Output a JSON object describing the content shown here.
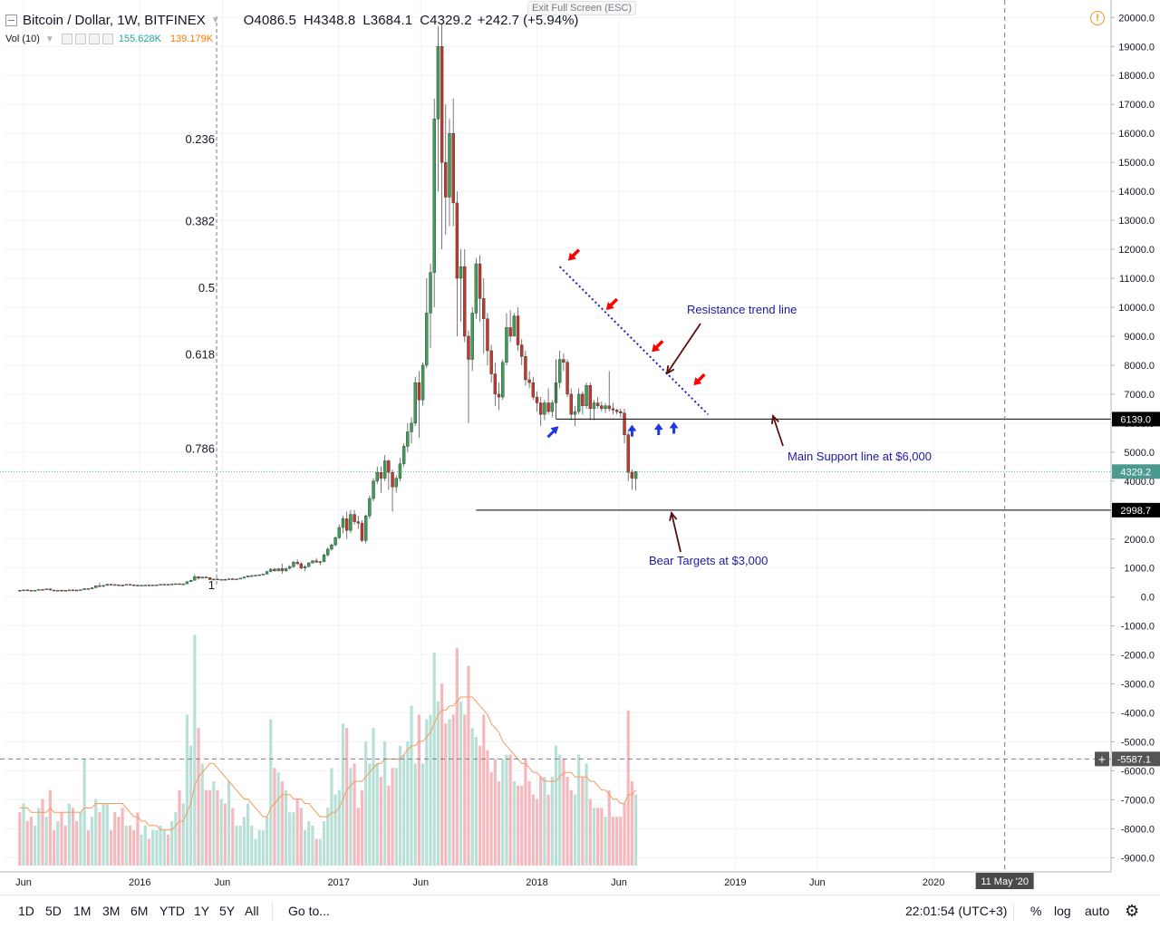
{
  "header": {
    "symbol": "Bitcoin / Dollar, 1W, BITFINEX",
    "open": "O4086.5",
    "high": "H4348.8",
    "low": "L3684.1",
    "close": "C4329.2",
    "change": "+242.7 (+5.94%)",
    "exit_fullscreen": "Exit Full Screen (ESC)",
    "alert_icon": "!"
  },
  "volume_indicator": {
    "label": "Vol (10)",
    "value": "155.628K",
    "ma_value": "139.179K",
    "value_color": "#26a69a",
    "ma_color": "#f57c00"
  },
  "price_axis": {
    "ticks": [
      "20000.0",
      "19000.0",
      "18000.0",
      "17000.0",
      "16000.0",
      "15000.0",
      "14000.0",
      "13000.0",
      "12000.0",
      "11000.0",
      "10000.0",
      "9000.0",
      "8000.0",
      "7000.0",
      "6000.0",
      "5000.0",
      "4000.0",
      "3000.0",
      "2000.0",
      "1000.0",
      "0.0",
      "-1000.0",
      "-2000.0",
      "-3000.0",
      "-4000.0",
      "-5000.0",
      "-6000.0",
      "-7000.0",
      "-8000.0",
      "-9000.0"
    ],
    "labels": [
      {
        "text": "6139.0",
        "value": 6139,
        "color": "#000000"
      },
      {
        "text": "4329.2",
        "value": 4329.2,
        "color": "#4a9a90"
      },
      {
        "text": "2998.7",
        "value": 2998.7,
        "color": "#000000"
      },
      {
        "text": "-5587.1",
        "value": -5587.1,
        "color": "#555555"
      }
    ]
  },
  "time_axis": {
    "ticks": [
      "Jun",
      "2016",
      "Jun",
      "2017",
      "Jun",
      "2018",
      "Jun",
      "2019",
      "Jun",
      "2020"
    ],
    "cursor_label": "11 May '20"
  },
  "chart_data": {
    "type": "candlestick",
    "title": "Bitcoin / Dollar, 1W, BITFINEX",
    "y_range": [
      -9500,
      20200
    ],
    "x_range": [
      "2015-05-25",
      "2020-10-20"
    ],
    "fib_levels": [
      {
        "label": "0.236",
        "value": 15780
      },
      {
        "label": "0.382",
        "value": 12950
      },
      {
        "label": "0.5",
        "value": 10650
      },
      {
        "label": "0.618",
        "value": 8360
      },
      {
        "label": "0.786",
        "value": 5100
      },
      {
        "label": "1",
        "value": 400
      }
    ],
    "trend_line": {
      "from": {
        "date": "2018-02-12",
        "value": 11400
      },
      "to": {
        "date": "2018-11-12",
        "value": 6300
      }
    },
    "support_line": {
      "from_date": "2018-02-05",
      "value": 6139
    },
    "bear_line": {
      "from_date": "2017-09-11",
      "value": 2998.7
    },
    "crosshair": {
      "date": "2020-05-11",
      "value": -5587.1
    },
    "annotations": [
      {
        "text": "Resistance trend line",
        "color": "#1a1aa6"
      },
      {
        "text": "Main Support line at $6,000",
        "color": "#1a1aa6"
      },
      {
        "text": "Bear Targets at $3,000",
        "color": "#1a1aa6"
      }
    ],
    "red_arrows": [
      {
        "date": "2018-02-19",
        "value": 11700
      },
      {
        "date": "2018-04-30",
        "value": 10000
      },
      {
        "date": "2018-07-23",
        "value": 8550
      },
      {
        "date": "2018-10-08",
        "value": 7400
      }
    ],
    "blue_arrows": [
      {
        "date": "2018-02-05",
        "value": 5800
      },
      {
        "date": "2018-06-25",
        "value": 5850
      },
      {
        "date": "2018-08-13",
        "value": 5900
      },
      {
        "date": "2018-09-10",
        "value": 5950
      }
    ],
    "candles": [
      [
        230,
        240,
        210,
        220
      ],
      [
        220,
        250,
        215,
        245
      ],
      [
        245,
        260,
        230,
        235
      ],
      [
        235,
        245,
        220,
        225
      ],
      [
        225,
        240,
        215,
        230
      ],
      [
        230,
        270,
        225,
        260
      ],
      [
        260,
        275,
        240,
        255
      ],
      [
        255,
        290,
        250,
        280
      ],
      [
        280,
        295,
        230,
        240
      ],
      [
        240,
        250,
        200,
        210
      ],
      [
        210,
        245,
        205,
        235
      ],
      [
        235,
        250,
        220,
        230
      ],
      [
        230,
        240,
        210,
        215
      ],
      [
        215,
        250,
        210,
        245
      ],
      [
        245,
        265,
        235,
        240
      ],
      [
        240,
        250,
        225,
        230
      ],
      [
        230,
        260,
        225,
        255
      ],
      [
        255,
        300,
        245,
        290
      ],
      [
        290,
        300,
        270,
        280
      ],
      [
        280,
        330,
        275,
        320
      ],
      [
        320,
        400,
        315,
        390
      ],
      [
        390,
        500,
        380,
        370
      ],
      [
        370,
        410,
        330,
        400
      ],
      [
        400,
        465,
        390,
        440
      ],
      [
        440,
        460,
        420,
        430
      ],
      [
        430,
        445,
        410,
        420
      ],
      [
        420,
        440,
        395,
        410
      ],
      [
        410,
        430,
        390,
        405
      ],
      [
        405,
        440,
        400,
        435
      ],
      [
        435,
        445,
        410,
        420
      ],
      [
        420,
        430,
        400,
        410
      ],
      [
        410,
        420,
        370,
        380
      ],
      [
        380,
        410,
        375,
        405
      ],
      [
        405,
        425,
        400,
        415
      ],
      [
        415,
        425,
        405,
        410
      ],
      [
        410,
        420,
        400,
        415
      ],
      [
        415,
        425,
        405,
        420
      ],
      [
        420,
        440,
        415,
        435
      ],
      [
        435,
        450,
        425,
        440
      ],
      [
        440,
        450,
        430,
        435
      ],
      [
        435,
        455,
        430,
        450
      ],
      [
        450,
        470,
        445,
        460
      ],
      [
        460,
        465,
        445,
        450
      ],
      [
        450,
        470,
        440,
        455
      ],
      [
        455,
        540,
        450,
        530
      ],
      [
        530,
        590,
        520,
        580
      ],
      [
        580,
        780,
        560,
        700
      ],
      [
        700,
        720,
        600,
        650
      ],
      [
        650,
        700,
        640,
        690
      ],
      [
        690,
        710,
        650,
        670
      ],
      [
        670,
        680,
        580,
        600
      ],
      [
        600,
        630,
        570,
        620
      ],
      [
        620,
        640,
        590,
        600
      ],
      [
        600,
        620,
        590,
        610
      ],
      [
        610,
        630,
        595,
        600
      ],
      [
        600,
        640,
        595,
        630
      ],
      [
        630,
        650,
        600,
        610
      ],
      [
        610,
        630,
        600,
        620
      ],
      [
        620,
        660,
        610,
        650
      ],
      [
        650,
        700,
        640,
        690
      ],
      [
        690,
        740,
        680,
        730
      ],
      [
        730,
        760,
        700,
        740
      ],
      [
        740,
        760,
        720,
        750
      ],
      [
        750,
        780,
        730,
        770
      ],
      [
        770,
        800,
        760,
        790
      ],
      [
        790,
        900,
        780,
        880
      ],
      [
        880,
        1000,
        850,
        960
      ],
      [
        960,
        1000,
        880,
        900
      ],
      [
        900,
        1000,
        890,
        980
      ],
      [
        980,
        1150,
        800,
        900
      ],
      [
        900,
        1000,
        880,
        990
      ],
      [
        990,
        1100,
        950,
        1050
      ],
      [
        1050,
        1250,
        1000,
        1200
      ],
      [
        1200,
        1300,
        1100,
        1150
      ],
      [
        1150,
        1200,
        950,
        1000
      ],
      [
        1000,
        1100,
        900,
        1050
      ],
      [
        1050,
        1200,
        1030,
        1180
      ],
      [
        1180,
        1280,
        1150,
        1250
      ],
      [
        1250,
        1350,
        1180,
        1200
      ],
      [
        1200,
        1250,
        1100,
        1220
      ],
      [
        1220,
        1500,
        1200,
        1450
      ],
      [
        1450,
        1700,
        1400,
        1650
      ],
      [
        1650,
        1850,
        1600,
        1800
      ],
      [
        1800,
        2100,
        1750,
        2050
      ],
      [
        2050,
        2500,
        2000,
        2400
      ],
      [
        2400,
        2800,
        2200,
        2700
      ],
      [
        2700,
        2950,
        2000,
        2300
      ],
      [
        2300,
        3000,
        2200,
        2850
      ],
      [
        2850,
        3000,
        2500,
        2600
      ],
      [
        2600,
        2800,
        2350,
        2550
      ],
      [
        2550,
        2650,
        1900,
        1950
      ],
      [
        1950,
        2850,
        1850,
        2800
      ],
      [
        2800,
        3500,
        2700,
        3400
      ],
      [
        3400,
        4100,
        3300,
        4000
      ],
      [
        4000,
        4500,
        3900,
        4300
      ],
      [
        4300,
        4500,
        3600,
        4100
      ],
      [
        4100,
        4900,
        4000,
        4700
      ],
      [
        4700,
        4750,
        3700,
        4300
      ],
      [
        4300,
        4400,
        2950,
        3800
      ],
      [
        3800,
        4200,
        3600,
        4100
      ],
      [
        4100,
        4800,
        4000,
        4600
      ],
      [
        4600,
        5300,
        4500,
        5200
      ],
      [
        5200,
        6000,
        5000,
        5700
      ],
      [
        5700,
        6200,
        5300,
        6000
      ],
      [
        6000,
        7600,
        5900,
        7400
      ],
      [
        7400,
        7800,
        5500,
        6800
      ],
      [
        6800,
        8100,
        6600,
        8000
      ],
      [
        8000,
        11000,
        7900,
        9800
      ],
      [
        9800,
        11500,
        8600,
        11200
      ],
      [
        11200,
        17200,
        10000,
        16500
      ],
      [
        16500,
        19700,
        14000,
        19000
      ],
      [
        19000,
        19800,
        12000,
        15000
      ],
      [
        15000,
        17000,
        12500,
        13800
      ],
      [
        13800,
        16500,
        12800,
        16000
      ],
      [
        16000,
        17200,
        12800,
        13600
      ],
      [
        13600,
        14000,
        9000,
        11000
      ],
      [
        11000,
        12000,
        9500,
        11400
      ],
      [
        11400,
        12000,
        8800,
        9000
      ],
      [
        9000,
        9200,
        6000,
        8200
      ],
      [
        8200,
        10000,
        7800,
        9800
      ],
      [
        9800,
        11700,
        9600,
        11500
      ],
      [
        11500,
        11800,
        9500,
        10300
      ],
      [
        10300,
        11000,
        8400,
        9600
      ],
      [
        9600,
        9800,
        8000,
        8500
      ],
      [
        8500,
        8700,
        7400,
        7700
      ],
      [
        7700,
        8100,
        6600,
        7000
      ],
      [
        7000,
        7400,
        6450,
        6900
      ],
      [
        6900,
        8200,
        6800,
        8100
      ],
      [
        8100,
        9800,
        8000,
        9300
      ],
      [
        9300,
        9900,
        8800,
        9000
      ],
      [
        9000,
        9800,
        9000,
        9700
      ],
      [
        9700,
        10000,
        8500,
        8700
      ],
      [
        8700,
        8900,
        8000,
        8300
      ],
      [
        8300,
        8500,
        7300,
        7500
      ],
      [
        7500,
        7800,
        7200,
        7400
      ],
      [
        7400,
        7600,
        6800,
        6900
      ],
      [
        6900,
        7100,
        6400,
        6700
      ],
      [
        6700,
        6900,
        5900,
        6300
      ],
      [
        6300,
        6800,
        6100,
        6700
      ],
      [
        6700,
        7200,
        6300,
        6400
      ],
      [
        6400,
        6800,
        6200,
        6700
      ],
      [
        6700,
        7600,
        6600,
        7400
      ],
      [
        7400,
        8500,
        7200,
        8200
      ],
      [
        8200,
        8400,
        7800,
        8100
      ],
      [
        8100,
        8200,
        6900,
        7000
      ],
      [
        7000,
        7200,
        6100,
        6300
      ],
      [
        6300,
        6600,
        5900,
        6400
      ],
      [
        6400,
        7200,
        6300,
        7000
      ],
      [
        7000,
        7100,
        6300,
        6600
      ],
      [
        6600,
        7400,
        6500,
        7300
      ],
      [
        7300,
        7400,
        6100,
        6500
      ],
      [
        6500,
        6800,
        6100,
        6700
      ],
      [
        6700,
        6900,
        6500,
        6600
      ],
      [
        6600,
        6750,
        6400,
        6500
      ],
      [
        6500,
        6700,
        6350,
        6600
      ],
      [
        6600,
        7800,
        6400,
        6500
      ],
      [
        6500,
        6700,
        6300,
        6450
      ],
      [
        6450,
        6500,
        6300,
        6400
      ],
      [
        6400,
        6500,
        6200,
        6350
      ],
      [
        6350,
        6500,
        5300,
        5600
      ],
      [
        5600,
        5700,
        4000,
        4300
      ],
      [
        4300,
        4400,
        3700,
        4100
      ],
      [
        4086.5,
        4348.8,
        3684.1,
        4329.2
      ]
    ],
    "volume_k": [
      12,
      14,
      10,
      11,
      9,
      13,
      15,
      11,
      17,
      8,
      10,
      12,
      9,
      14,
      13,
      10,
      12,
      24,
      8,
      11,
      15,
      12,
      14,
      14,
      8,
      12,
      11,
      13,
      9,
      9,
      8,
      12,
      7,
      9,
      6,
      8,
      8,
      9,
      8,
      7,
      10,
      12,
      17,
      14,
      34,
      27,
      52,
      31,
      23,
      17,
      17,
      19,
      17,
      15,
      14,
      19,
      13,
      9,
      9,
      11,
      14,
      9,
      6,
      8,
      8,
      11,
      33,
      22,
      21,
      19,
      17,
      12,
      12,
      15,
      13,
      8,
      10,
      9,
      6,
      6,
      10,
      13,
      22,
      16,
      17,
      32,
      31,
      22,
      23,
      13,
      17,
      28,
      23,
      31,
      23,
      20,
      28,
      18,
      22,
      22,
      27,
      25,
      28,
      36,
      23,
      34,
      23,
      33,
      34,
      48,
      37,
      41,
      32,
      33,
      34,
      49,
      37,
      34,
      45,
      31,
      29,
      27,
      34,
      26,
      21,
      24,
      19,
      24,
      25,
      25,
      19,
      18,
      18,
      24,
      19,
      16,
      15,
      20,
      20,
      16,
      20,
      27,
      25,
      24,
      20,
      17,
      16,
      25,
      20,
      23,
      15,
      13,
      13,
      13,
      11,
      17,
      11,
      11,
      11,
      14,
      35,
      19,
      16
    ],
    "volume_ma_k": [
      13,
      13,
      13,
      12,
      12,
      12,
      12,
      12,
      13,
      12,
      12,
      12,
      12,
      12,
      12,
      12,
      12,
      13,
      13,
      13,
      14,
      14,
      14,
      14,
      14,
      14,
      14,
      14,
      13,
      12,
      11,
      11,
      10,
      10,
      9,
      9,
      9,
      8,
      8,
      8,
      8,
      9,
      10,
      10,
      12,
      14,
      18,
      20,
      21,
      22,
      23,
      23,
      22,
      21,
      20,
      19,
      18,
      17,
      16,
      15,
      15,
      14,
      13,
      12,
      11,
      11,
      13,
      14,
      15,
      16,
      16,
      16,
      15,
      15,
      15,
      14,
      14,
      13,
      12,
      11,
      11,
      11,
      12,
      12,
      13,
      15,
      17,
      18,
      19,
      19,
      19,
      20,
      21,
      22,
      23,
      23,
      24,
      24,
      24,
      24,
      24,
      25,
      26,
      27,
      27,
      28,
      28,
      29,
      30,
      32,
      34,
      35,
      35,
      36,
      36,
      37,
      38,
      38,
      38,
      38,
      37,
      36,
      35,
      34,
      32,
      31,
      30,
      28,
      27,
      26,
      25,
      24,
      23,
      23,
      22,
      21,
      21,
      20,
      19,
      19,
      19,
      19,
      20,
      21,
      21,
      21,
      20,
      20,
      20,
      20,
      19,
      19,
      18,
      17,
      17,
      16,
      15,
      15,
      14,
      14,
      16,
      16,
      17
    ]
  },
  "bottom_bar": {
    "ranges": [
      "1D",
      "5D",
      "1M",
      "3M",
      "6M",
      "YTD",
      "1Y",
      "5Y",
      "All"
    ],
    "goto": "Go to...",
    "clock": "22:01:54 (UTC+3)",
    "percent": "%",
    "log": "log",
    "auto": "auto",
    "settings_icon": "gear-icon"
  }
}
